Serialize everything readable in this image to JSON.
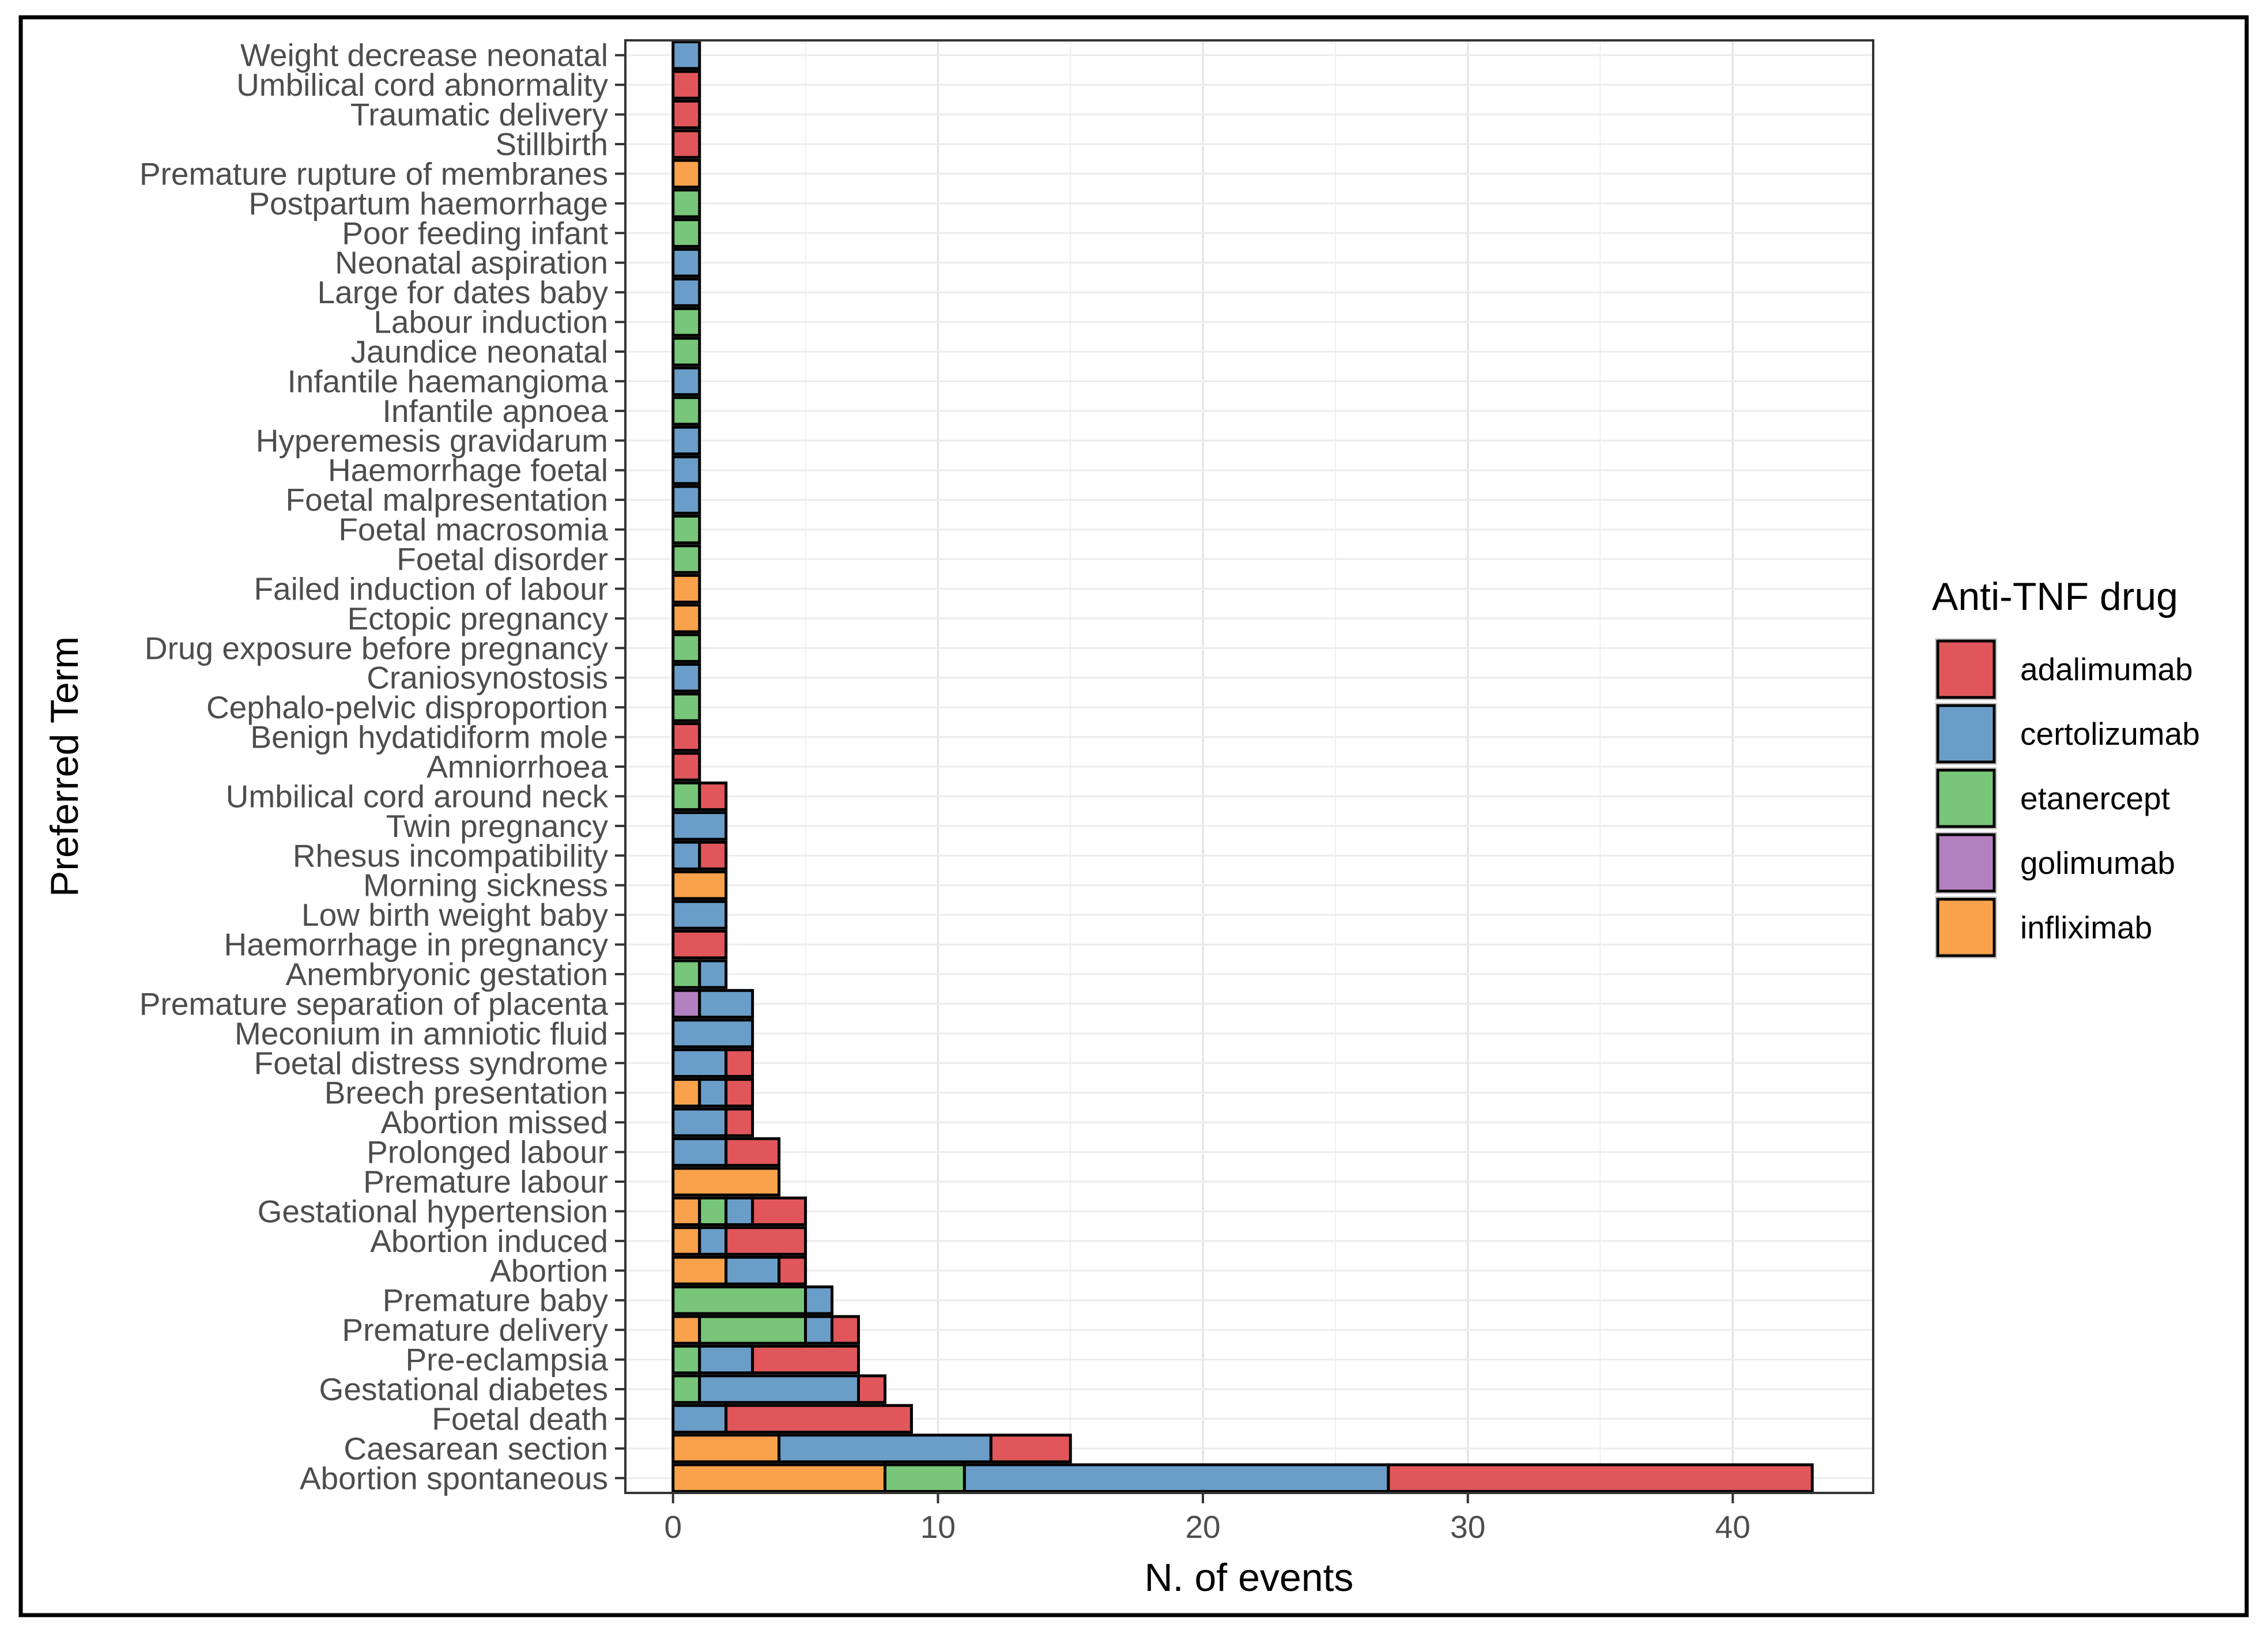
{
  "chart_data": {
    "type": "bar",
    "orientation": "horizontal",
    "stacked": true,
    "title": "",
    "xlabel": "N. of events",
    "ylabel": "Preferred Term",
    "xlim": [
      -1.8,
      45.3
    ],
    "x_ticks": [
      0,
      10,
      20,
      30,
      40
    ],
    "grid": true,
    "legend": {
      "title": "Anti-TNF drug",
      "position": "right",
      "entries": [
        "adalimumab",
        "certolizumab",
        "etanercept",
        "golimumab",
        "infliximab"
      ]
    },
    "colors": {
      "adalimumab": "#e0565b",
      "certolizumab": "#6a9ec9",
      "etanercept": "#78c679",
      "golimumab": "#b481c0",
      "infliximab": "#f9a24b"
    },
    "stack_order": [
      "infliximab",
      "golimumab",
      "etanercept",
      "certolizumab",
      "adalimumab"
    ],
    "categories": [
      "Weight decrease neonatal",
      "Umbilical cord abnormality",
      "Traumatic delivery",
      "Stillbirth",
      "Premature rupture of membranes",
      "Postpartum haemorrhage",
      "Poor feeding infant",
      "Neonatal aspiration",
      "Large for dates baby",
      "Labour induction",
      "Jaundice neonatal",
      "Infantile haemangioma",
      "Infantile apnoea",
      "Hyperemesis gravidarum",
      "Haemorrhage foetal",
      "Foetal malpresentation",
      "Foetal macrosomia",
      "Foetal disorder",
      "Failed induction of labour",
      "Ectopic pregnancy",
      "Drug exposure before pregnancy",
      "Craniosynostosis",
      "Cephalo-pelvic disproportion",
      "Benign hydatidiform mole",
      "Amniorrhoea",
      "Umbilical cord around neck",
      "Twin pregnancy",
      "Rhesus incompatibility",
      "Morning sickness",
      "Low birth weight baby",
      "Haemorrhage in pregnancy",
      "Anembryonic gestation",
      "Premature separation of placenta",
      "Meconium in amniotic fluid",
      "Foetal distress syndrome",
      "Breech presentation",
      "Abortion missed",
      "Prolonged labour",
      "Premature labour",
      "Gestational hypertension",
      "Abortion induced",
      "Abortion",
      "Premature baby",
      "Premature delivery",
      "Pre-eclampsia",
      "Gestational diabetes",
      "Foetal death",
      "Caesarean section",
      "Abortion spontaneous"
    ],
    "series": [
      {
        "name": "infliximab",
        "values": [
          0,
          0,
          0,
          0,
          1,
          0,
          0,
          0,
          0,
          0,
          0,
          0,
          0,
          0,
          0,
          0,
          0,
          0,
          1,
          1,
          0,
          0,
          0,
          0,
          0,
          0,
          0,
          0,
          2,
          0,
          0,
          0,
          0,
          0,
          0,
          1,
          0,
          0,
          4,
          1,
          1,
          2,
          0,
          1,
          0,
          0,
          0,
          4,
          8
        ]
      },
      {
        "name": "golimumab",
        "values": [
          0,
          0,
          0,
          0,
          0,
          0,
          0,
          0,
          0,
          0,
          0,
          0,
          0,
          0,
          0,
          0,
          0,
          0,
          0,
          0,
          0,
          0,
          0,
          0,
          0,
          0,
          0,
          0,
          0,
          0,
          0,
          0,
          1,
          0,
          0,
          0,
          0,
          0,
          0,
          0,
          0,
          0,
          0,
          0,
          0,
          0,
          0,
          0,
          0
        ]
      },
      {
        "name": "etanercept",
        "values": [
          0,
          0,
          0,
          0,
          0,
          1,
          1,
          0,
          0,
          1,
          1,
          0,
          1,
          0,
          0,
          0,
          1,
          1,
          0,
          0,
          1,
          0,
          1,
          0,
          0,
          1,
          0,
          0,
          0,
          0,
          0,
          1,
          0,
          0,
          0,
          0,
          0,
          0,
          0,
          1,
          0,
          0,
          5,
          4,
          1,
          1,
          0,
          0,
          3
        ]
      },
      {
        "name": "certolizumab",
        "values": [
          1,
          0,
          0,
          0,
          0,
          0,
          0,
          1,
          1,
          0,
          0,
          1,
          0,
          1,
          1,
          1,
          0,
          0,
          0,
          0,
          0,
          1,
          0,
          0,
          0,
          0,
          2,
          1,
          0,
          2,
          0,
          1,
          2,
          3,
          2,
          1,
          2,
          2,
          0,
          1,
          1,
          2,
          1,
          1,
          2,
          6,
          2,
          8,
          16
        ]
      },
      {
        "name": "adalimumab",
        "values": [
          0,
          1,
          1,
          1,
          0,
          0,
          0,
          0,
          0,
          0,
          0,
          0,
          0,
          0,
          0,
          0,
          0,
          0,
          0,
          0,
          0,
          0,
          0,
          1,
          1,
          1,
          0,
          1,
          0,
          0,
          2,
          0,
          0,
          0,
          1,
          1,
          1,
          2,
          0,
          2,
          3,
          1,
          0,
          1,
          4,
          1,
          7,
          3,
          16
        ]
      }
    ]
  }
}
